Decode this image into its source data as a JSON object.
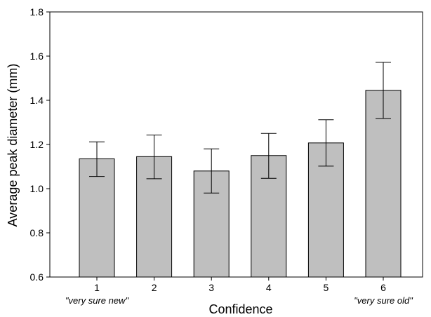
{
  "chart_data": {
    "type": "bar",
    "title": "",
    "xlabel": "Confidence",
    "ylabel": "Average peak diameter (mm)",
    "categories": [
      "1",
      "2",
      "3",
      "4",
      "5",
      "6"
    ],
    "values": [
      1.135,
      1.145,
      1.08,
      1.15,
      1.207,
      1.445
    ],
    "error_low": [
      1.055,
      1.045,
      0.98,
      1.047,
      1.102,
      1.318
    ],
    "error_high": [
      1.212,
      1.243,
      1.18,
      1.25,
      1.312,
      1.572
    ],
    "ylim": [
      0.6,
      1.8
    ],
    "yticks": [
      "0.6",
      "0.8",
      "1.0",
      "1.2",
      "1.4",
      "1.6",
      "1.8"
    ],
    "grid": false,
    "legend": false,
    "bar_color": "#bfbfbf",
    "annotations": [
      {
        "category": "1",
        "text": "\"very sure new\""
      },
      {
        "category": "6",
        "text": "\"very sure old\""
      }
    ]
  }
}
